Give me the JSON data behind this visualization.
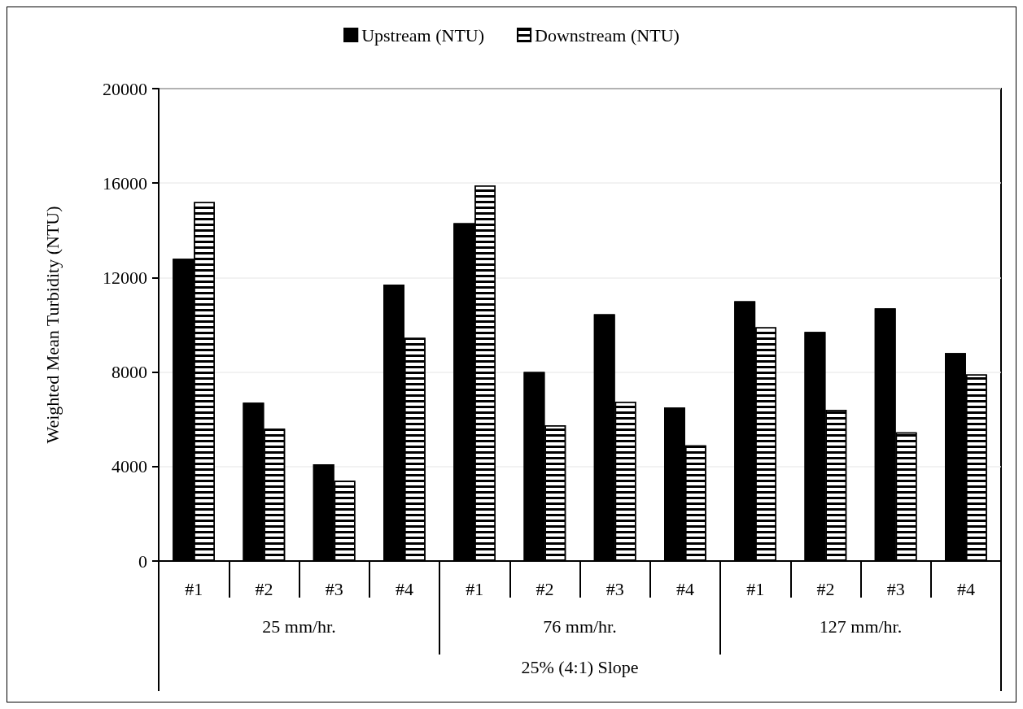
{
  "chart_data": {
    "type": "bar",
    "ylabel": "Weighted Mean Turbidity (NTU)",
    "xlabel": "25% (4:1) Slope",
    "annotations": [
      "25 mm/hr.",
      "76 mm/hr.",
      "127 mm/hr."
    ],
    "categories": [
      "#1",
      "#2",
      "#3",
      "#4",
      "#1",
      "#2",
      "#3",
      "#4",
      "#1",
      "#2",
      "#3",
      "#4"
    ],
    "series": [
      {
        "name": "Upstream (NTU)",
        "color": "#000000",
        "values": [
          12800,
          6700,
          4100,
          11700,
          14300,
          8000,
          10450,
          6500,
          11000,
          9700,
          10700,
          8800
        ]
      },
      {
        "name": "Downstream (NTU)",
        "color": "#ffffff",
        "values": [
          15200,
          5600,
          3400,
          9450,
          15900,
          5750,
          6750,
          4900,
          9900,
          6400,
          5450,
          7900
        ]
      }
    ],
    "ylim": [
      0,
      20000
    ],
    "yticks": [
      0,
      4000,
      8000,
      12000,
      16000,
      20000
    ],
    "grid": "y",
    "legend": "top"
  }
}
